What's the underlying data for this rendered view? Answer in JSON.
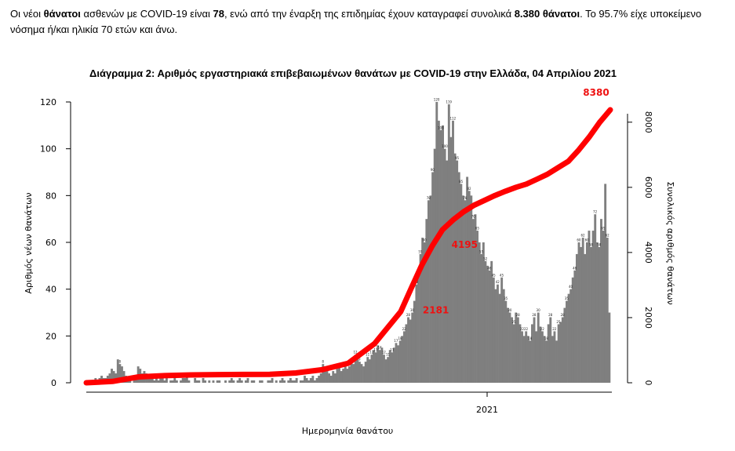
{
  "intro": {
    "t1": "Οι νέοι ",
    "b1": "θάνατοι",
    "t2": " ασθενών με COVID-19 είναι ",
    "b2": "78",
    "t3": ", ενώ από την έναρξη της επιδημίας έχουν καταγραφεί συνολικά ",
    "b3": "8.380 θάνατοι",
    "t4": ".  Το 95.7% είχε υποκείμενο νόσημα ή/και ηλικία 70 ετών και άνω."
  },
  "chart_data": {
    "type": "bar",
    "title": "Διάγραμμα 2: Αριθμός εργαστηριακά επιβεβαιωμένων θανάτων με COVID-19 στην Ελλάδα, 04 Απριλίου 2021",
    "xlabel": "Ημερομηνία θανάτου",
    "ylabel_left": "Αριθμός νέων θανάτων",
    "ylabel_right": "Συνολικός αριθμός θανάτων",
    "ylim_left": [
      0,
      120
    ],
    "ylim_right": [
      0,
      8380
    ],
    "yticks_left": [
      "0",
      "20",
      "40",
      "60",
      "80",
      "100",
      "120"
    ],
    "yticks_right": [
      "0",
      "2000",
      "4000",
      "6000",
      "8000"
    ],
    "xticks": [
      "2021"
    ],
    "grid": false,
    "series": [
      {
        "name": "",
        "kind": "bar",
        "color": "#7f7f7f",
        "values": [
          1,
          0,
          1,
          1,
          2,
          1,
          2,
          3,
          2,
          2,
          3,
          4,
          6,
          5,
          4,
          10,
          8,
          7,
          5,
          3,
          2,
          1,
          0,
          2,
          3,
          7,
          6,
          4,
          5,
          4,
          3,
          2,
          3,
          1,
          2,
          1,
          3,
          2,
          1,
          2,
          0,
          1,
          1,
          2,
          1,
          0,
          1,
          2,
          2,
          3,
          1,
          0,
          0,
          2,
          1,
          1,
          0,
          2,
          1,
          0,
          1,
          0,
          1,
          0,
          1,
          1,
          0,
          0,
          1,
          0,
          1,
          2,
          1,
          0,
          1,
          2,
          1,
          0,
          1,
          2,
          0,
          1,
          1,
          0,
          0,
          1,
          1,
          0,
          0,
          1,
          1,
          2,
          0,
          1,
          0,
          1,
          2,
          1,
          0,
          1,
          2,
          1,
          1,
          2,
          0,
          1,
          1,
          3,
          2,
          1,
          2,
          3,
          1,
          2,
          3,
          4,
          8,
          6,
          5,
          4,
          3,
          5,
          4,
          6,
          7,
          5,
          6,
          8,
          6,
          7,
          9,
          8,
          12,
          10,
          9,
          8,
          7,
          9,
          11,
          10,
          12,
          14,
          13,
          16,
          14,
          15,
          12,
          10,
          11,
          14,
          13,
          15,
          17,
          16,
          18,
          20,
          22,
          25,
          28,
          27,
          30,
          35,
          42,
          48,
          55,
          62,
          60,
          70,
          78,
          80,
          90,
          100,
          120,
          112,
          108,
          110,
          100,
          95,
          119,
          105,
          112,
          98,
          95,
          90,
          85,
          80,
          78,
          88,
          82,
          80,
          70,
          72,
          65,
          60,
          55,
          60,
          52,
          50,
          48,
          52,
          45,
          40,
          42,
          38,
          45,
          40,
          35,
          32,
          30,
          28,
          25,
          30,
          28,
          25,
          22,
          20,
          22,
          20,
          18,
          25,
          28,
          22,
          30,
          24,
          22,
          20,
          18,
          25,
          28,
          20,
          22,
          18,
          25,
          26,
          28,
          32,
          35,
          38,
          40,
          45,
          48,
          55,
          60,
          58,
          62,
          55,
          60,
          65,
          58,
          65,
          72,
          60,
          58,
          70,
          65,
          85,
          62,
          30
        ]
      },
      {
        "name": "",
        "kind": "line",
        "color": "#ff0000",
        "x_fraction": [
          0.0,
          0.05,
          0.1,
          0.15,
          0.2,
          0.25,
          0.3,
          0.35,
          0.4,
          0.45,
          0.5,
          0.55,
          0.6,
          0.62,
          0.64,
          0.66,
          0.68,
          0.7,
          0.72,
          0.74,
          0.76,
          0.78,
          0.8,
          0.82,
          0.84,
          0.86,
          0.88,
          0.9,
          0.92,
          0.94,
          0.96,
          0.98,
          1.0
        ],
        "values": [
          0,
          40,
          180,
          220,
          240,
          250,
          255,
          260,
          300,
          400,
          600,
          1200,
          2181,
          2900,
          3600,
          4195,
          4700,
          5000,
          5250,
          5450,
          5600,
          5750,
          5880,
          6000,
          6100,
          6250,
          6400,
          6600,
          6800,
          7150,
          7550,
          8000,
          8380
        ]
      }
    ],
    "annotations": [
      {
        "text": "8380",
        "value": 8380,
        "x_fraction": 1.0
      },
      {
        "text": "4195",
        "value": 4195,
        "x_fraction": 0.74
      },
      {
        "text": "2181",
        "value": 2181,
        "x_fraction": 0.685
      }
    ]
  }
}
